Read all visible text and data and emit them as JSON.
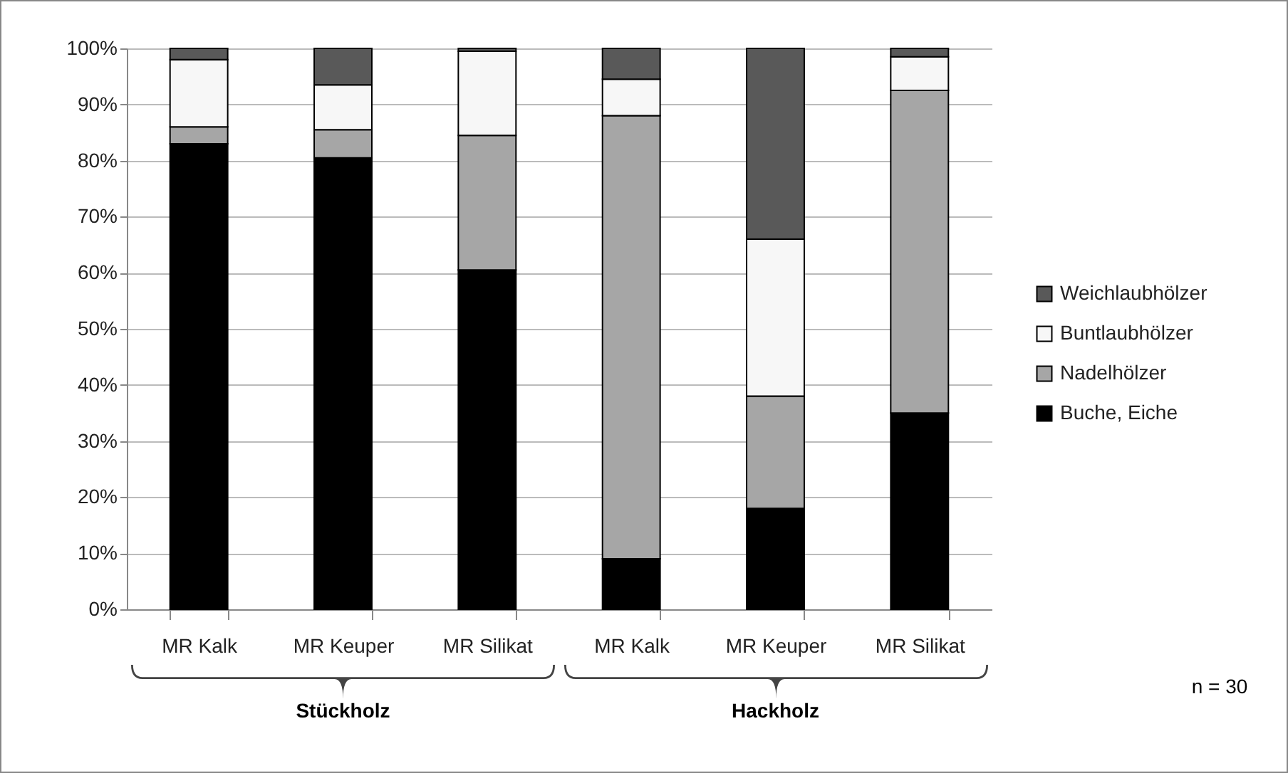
{
  "chart_data": {
    "type": "bar",
    "stacked": true,
    "categories": [
      "MR Kalk",
      "MR Keuper",
      "MR Silikat",
      "MR Kalk",
      "MR Keuper",
      "MR Silikat"
    ],
    "series": [
      {
        "name": "Buche, Eiche",
        "color": "#000000",
        "values": [
          83,
          80.5,
          60.5,
          9,
          18,
          35
        ]
      },
      {
        "name": "Nadelhölzer",
        "color": "#a6a6a6",
        "values": [
          3,
          5,
          24,
          79,
          20,
          57.5
        ]
      },
      {
        "name": "Buntlaubhölzer",
        "color": "#f7f7f7",
        "values": [
          12,
          8,
          15,
          6.5,
          28,
          6
        ]
      },
      {
        "name": "Weichlaubhölzer",
        "color": "#595959",
        "values": [
          2,
          6.5,
          0.5,
          5.5,
          34,
          1.5
        ]
      }
    ],
    "ylim": [
      0,
      100
    ],
    "yticks": [
      {
        "value": 0,
        "label": "0%"
      },
      {
        "value": 10,
        "label": "10%"
      },
      {
        "value": 20,
        "label": "20%"
      },
      {
        "value": 30,
        "label": "30%"
      },
      {
        "value": 40,
        "label": "40%"
      },
      {
        "value": 50,
        "label": "50%"
      },
      {
        "value": 60,
        "label": "60%"
      },
      {
        "value": 70,
        "label": "70%"
      },
      {
        "value": 80,
        "label": "80%"
      },
      {
        "value": 90,
        "label": "90%"
      },
      {
        "value": 100,
        "label": "100%"
      }
    ],
    "grid": "y",
    "legend": "right",
    "annotations": [
      "Stückholz",
      "Hackholz",
      "n = 30"
    ]
  }
}
